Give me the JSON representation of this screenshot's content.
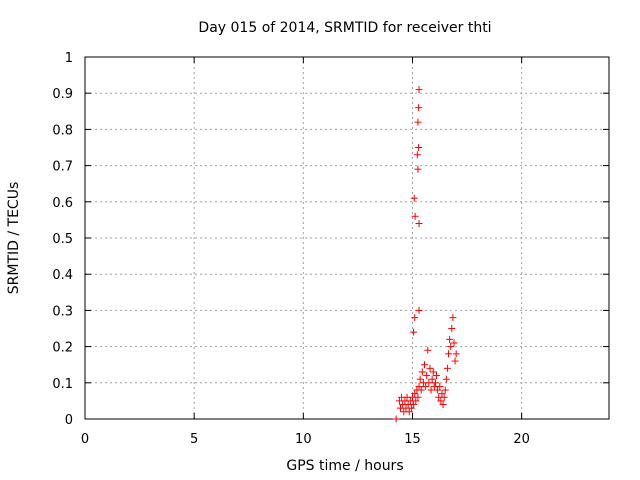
{
  "chart_data": {
    "type": "scatter",
    "title": "Day 015 of 2014, SRMTID for receiver thti",
    "xlabel": "GPS time / hours",
    "ylabel": "SRMTID / TECUs",
    "xlim": [
      0,
      24
    ],
    "ylim": [
      0,
      1
    ],
    "xticks": [
      "0",
      "5",
      "10",
      "15",
      "20"
    ],
    "yticks": [
      "0",
      "0.1",
      "0.2",
      "0.3",
      "0.4",
      "0.5",
      "0.6",
      "0.7",
      "0.8",
      "0.9",
      "1"
    ],
    "grid": true,
    "marker": "+",
    "marker_color": "#ff0000",
    "series": [
      {
        "points": [
          [
            14.25,
            0.0
          ],
          [
            14.4,
            0.05
          ],
          [
            14.45,
            0.03
          ],
          [
            14.5,
            0.06
          ],
          [
            14.55,
            0.04
          ],
          [
            14.6,
            0.02
          ],
          [
            14.65,
            0.05
          ],
          [
            14.7,
            0.03
          ],
          [
            14.75,
            0.06
          ],
          [
            14.8,
            0.04
          ],
          [
            14.85,
            0.02
          ],
          [
            14.9,
            0.05
          ],
          [
            14.95,
            0.03
          ],
          [
            15.0,
            0.06
          ],
          [
            15.05,
            0.04
          ],
          [
            15.1,
            0.07
          ],
          [
            15.15,
            0.05
          ],
          [
            15.2,
            0.08
          ],
          [
            15.25,
            0.06
          ],
          [
            15.3,
            0.09
          ],
          [
            15.35,
            0.11
          ],
          [
            15.4,
            0.08
          ],
          [
            15.45,
            0.13
          ],
          [
            15.5,
            0.1
          ],
          [
            15.55,
            0.15
          ],
          [
            15.6,
            0.09
          ],
          [
            15.65,
            0.12
          ],
          [
            15.7,
            0.19
          ],
          [
            15.75,
            0.1
          ],
          [
            15.8,
            0.14
          ],
          [
            15.85,
            0.08
          ],
          [
            15.9,
            0.11
          ],
          [
            15.95,
            0.13
          ],
          [
            16.0,
            0.09
          ],
          [
            16.05,
            0.1
          ],
          [
            16.1,
            0.12
          ],
          [
            16.15,
            0.08
          ],
          [
            16.2,
            0.06
          ],
          [
            16.25,
            0.09
          ],
          [
            16.3,
            0.05
          ],
          [
            16.35,
            0.07
          ],
          [
            16.4,
            0.04
          ],
          [
            16.45,
            0.06
          ],
          [
            16.5,
            0.08
          ],
          [
            16.55,
            0.11
          ],
          [
            16.6,
            0.14
          ],
          [
            16.65,
            0.18
          ],
          [
            16.7,
            0.22
          ],
          [
            16.75,
            0.2
          ],
          [
            16.8,
            0.25
          ],
          [
            16.85,
            0.28
          ],
          [
            16.9,
            0.21
          ],
          [
            16.95,
            0.16
          ],
          [
            17.0,
            0.18
          ],
          [
            15.05,
            0.24
          ],
          [
            15.1,
            0.28
          ],
          [
            15.3,
            0.3
          ],
          [
            15.08,
            0.61
          ],
          [
            15.12,
            0.56
          ],
          [
            15.3,
            0.54
          ],
          [
            15.25,
            0.69
          ],
          [
            15.22,
            0.73
          ],
          [
            15.28,
            0.75
          ],
          [
            15.25,
            0.82
          ],
          [
            15.28,
            0.86
          ],
          [
            15.3,
            0.91
          ]
        ]
      }
    ]
  }
}
